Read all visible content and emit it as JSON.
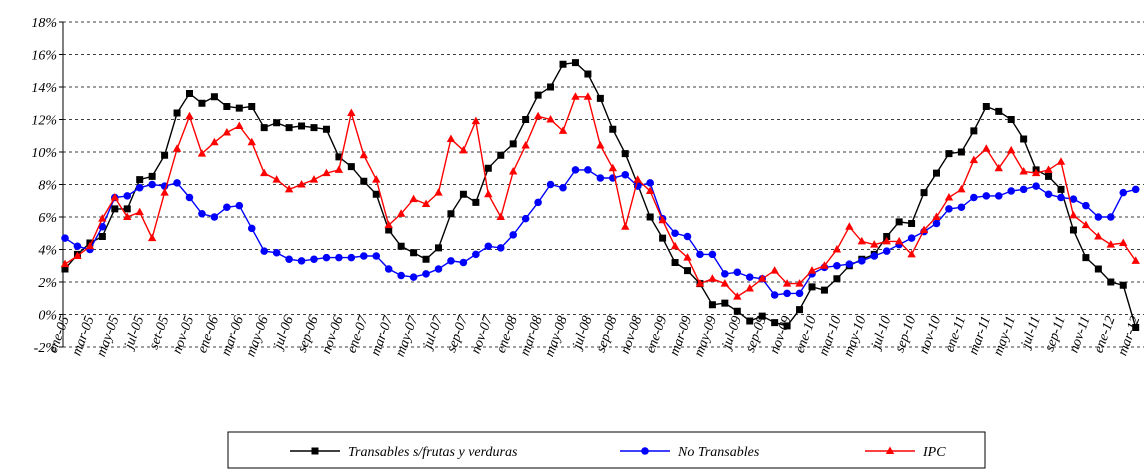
{
  "chart_data": {
    "type": "line",
    "categories": [
      "ene-05",
      null,
      "mar-05",
      null,
      "may-05",
      null,
      "jul-05",
      null,
      "set-05",
      null,
      "nov-05",
      null,
      "ene-06",
      null,
      "mar-06",
      null,
      "may-06",
      null,
      "jul-06",
      null,
      "sep-06",
      null,
      "nov-06",
      null,
      "ene-07",
      null,
      "mar-07",
      null,
      "may-07",
      null,
      "jul-07",
      null,
      "sep-07",
      null,
      "nov-07",
      null,
      "ene-08",
      null,
      "mar-08",
      null,
      "may-08",
      null,
      "jul-08",
      null,
      "sep-08",
      null,
      "nov-08",
      null,
      "ene-09",
      null,
      "mar-09",
      null,
      "may-09",
      null,
      "jul-09",
      null,
      "sep-09",
      null,
      "nov-09",
      null,
      "ene-10",
      null,
      "mar-10",
      null,
      "may-10",
      null,
      "jul-10",
      null,
      "sep-10",
      null,
      "nov-10",
      null,
      "ene-11",
      null,
      "mar-11",
      null,
      "may-11",
      null,
      "jul-11",
      null,
      "sep-11",
      null,
      "nov-11",
      null,
      "ene-12",
      null,
      "mar-12"
    ],
    "series": [
      {
        "name": "Transables s/frutas y verduras",
        "color": "#000000",
        "marker": "square",
        "values": [
          2.8,
          3.7,
          4.4,
          4.8,
          6.5,
          6.5,
          8.3,
          8.5,
          9.8,
          12.4,
          13.6,
          13.0,
          13.4,
          12.8,
          12.7,
          12.8,
          11.5,
          11.8,
          11.5,
          11.6,
          11.5,
          11.4,
          9.7,
          9.1,
          8.2,
          7.4,
          5.2,
          4.2,
          3.8,
          3.4,
          4.1,
          6.2,
          7.4,
          6.9,
          9.0,
          9.8,
          10.5,
          12.0,
          13.5,
          14.0,
          15.4,
          15.5,
          14.8,
          13.3,
          11.4,
          9.9,
          8.0,
          6.0,
          4.7,
          3.2,
          2.7,
          1.9,
          0.6,
          0.7,
          0.2,
          -0.4,
          -0.1,
          -0.5,
          -0.7,
          0.3,
          1.7,
          1.5,
          2.2,
          3.0,
          3.4,
          3.7,
          4.8,
          5.7,
          5.6,
          7.5,
          8.7,
          9.9,
          10.0,
          11.3,
          12.8,
          12.5,
          12.0,
          10.8,
          8.9,
          8.5,
          7.7,
          5.2,
          3.5,
          2.8,
          2.0,
          1.8,
          -0.8
        ]
      },
      {
        "name": "No Transables",
        "color": "#0000ff",
        "marker": "circle",
        "values": [
          4.7,
          4.2,
          4.0,
          5.4,
          7.2,
          7.3,
          7.8,
          8.0,
          7.9,
          8.1,
          7.2,
          6.2,
          6.0,
          6.6,
          6.7,
          5.3,
          3.9,
          3.8,
          3.4,
          3.3,
          3.4,
          3.5,
          3.5,
          3.5,
          3.6,
          3.6,
          2.8,
          2.4,
          2.3,
          2.5,
          2.8,
          3.3,
          3.2,
          3.7,
          4.2,
          4.1,
          4.9,
          5.9,
          6.9,
          8.0,
          7.8,
          8.9,
          8.9,
          8.4,
          8.4,
          8.6,
          7.9,
          8.1,
          5.9,
          5.0,
          4.8,
          3.7,
          3.7,
          2.5,
          2.6,
          2.3,
          2.2,
          1.2,
          1.3,
          1.3,
          2.5,
          2.9,
          3.0,
          3.1,
          3.3,
          3.6,
          3.9,
          4.3,
          4.7,
          5.1,
          5.6,
          6.5,
          6.6,
          7.2,
          7.3,
          7.3,
          7.6,
          7.7,
          7.9,
          7.4,
          7.2,
          7.1,
          6.7,
          6.0,
          6.0,
          7.5,
          7.7
        ]
      },
      {
        "name": "IPC",
        "color": "#ff0000",
        "marker": "triangle",
        "values": [
          3.1,
          3.6,
          4.2,
          5.9,
          7.2,
          6.0,
          6.3,
          4.7,
          7.5,
          10.2,
          12.2,
          9.9,
          10.6,
          11.2,
          11.6,
          10.6,
          8.7,
          8.3,
          7.7,
          8.0,
          8.3,
          8.7,
          8.9,
          12.4,
          9.8,
          8.3,
          5.5,
          6.2,
          7.1,
          6.8,
          7.5,
          10.8,
          10.1,
          11.9,
          7.4,
          6.0,
          8.8,
          10.4,
          12.2,
          12.0,
          11.3,
          13.4,
          13.4,
          10.4,
          9.0,
          5.4,
          8.3,
          7.6,
          5.8,
          4.2,
          3.5,
          1.9,
          2.2,
          1.9,
          1.1,
          1.6,
          2.2,
          2.7,
          1.9,
          1.9,
          2.7,
          3.0,
          4.0,
          5.4,
          4.5,
          4.3,
          4.5,
          4.5,
          3.7,
          5.2,
          6.0,
          7.2,
          7.7,
          9.5,
          10.2,
          9.0,
          10.1,
          8.8,
          8.7,
          8.9,
          9.4,
          6.1,
          5.5,
          4.8,
          4.3,
          4.4,
          3.3
        ]
      }
    ],
    "ylim": [
      -2,
      18
    ],
    "yticks": [
      {
        "value": -2,
        "label": "-2%"
      },
      {
        "value": 0,
        "label": "0%"
      },
      {
        "value": 2,
        "label": "2%"
      },
      {
        "value": 4,
        "label": "4%"
      },
      {
        "value": 6,
        "label": "6%"
      },
      {
        "value": 8,
        "label": "8%"
      },
      {
        "value": 10,
        "label": "10%"
      },
      {
        "value": 12,
        "label": "12%"
      },
      {
        "value": 14,
        "label": "14%"
      },
      {
        "value": 16,
        "label": "16%"
      },
      {
        "value": 18,
        "label": "18%"
      }
    ],
    "grid": true,
    "legend": "bottom"
  }
}
